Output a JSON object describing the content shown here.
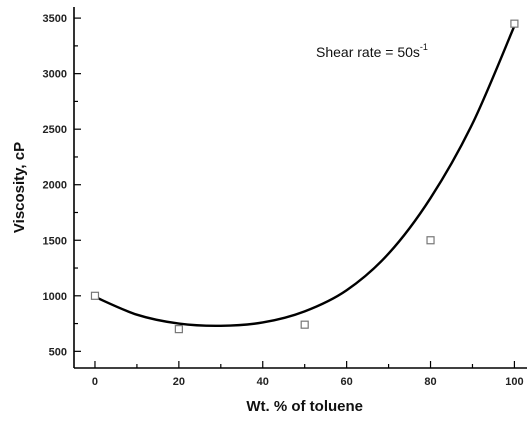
{
  "chart_data": {
    "type": "scatter",
    "xlabel": "Wt. % of toluene",
    "ylabel": "Viscosity, cP",
    "xlim": [
      -5,
      103
    ],
    "ylim": [
      350,
      3600
    ],
    "x_ticks": [
      0,
      20,
      40,
      60,
      80,
      100
    ],
    "y_ticks": [
      500,
      1000,
      1500,
      2000,
      2500,
      3000,
      3500
    ],
    "series": [
      {
        "marker": "open-square",
        "points": [
          {
            "x": 0,
            "y": 1000
          },
          {
            "x": 20,
            "y": 700
          },
          {
            "x": 50,
            "y": 740
          },
          {
            "x": 80,
            "y": 1500
          },
          {
            "x": 100,
            "y": 3450
          }
        ]
      }
    ],
    "fit_curve": {
      "type": "polynomial",
      "points": [
        {
          "x": 0,
          "y": 990
        },
        {
          "x": 10,
          "y": 830
        },
        {
          "x": 20,
          "y": 750
        },
        {
          "x": 30,
          "y": 730
        },
        {
          "x": 40,
          "y": 760
        },
        {
          "x": 50,
          "y": 860
        },
        {
          "x": 60,
          "y": 1050
        },
        {
          "x": 70,
          "y": 1380
        },
        {
          "x": 80,
          "y": 1880
        },
        {
          "x": 90,
          "y": 2550
        },
        {
          "x": 100,
          "y": 3430
        }
      ]
    },
    "annotation": {
      "text": "Shear rate = 50s",
      "superscript": "-1"
    },
    "grid": false
  }
}
